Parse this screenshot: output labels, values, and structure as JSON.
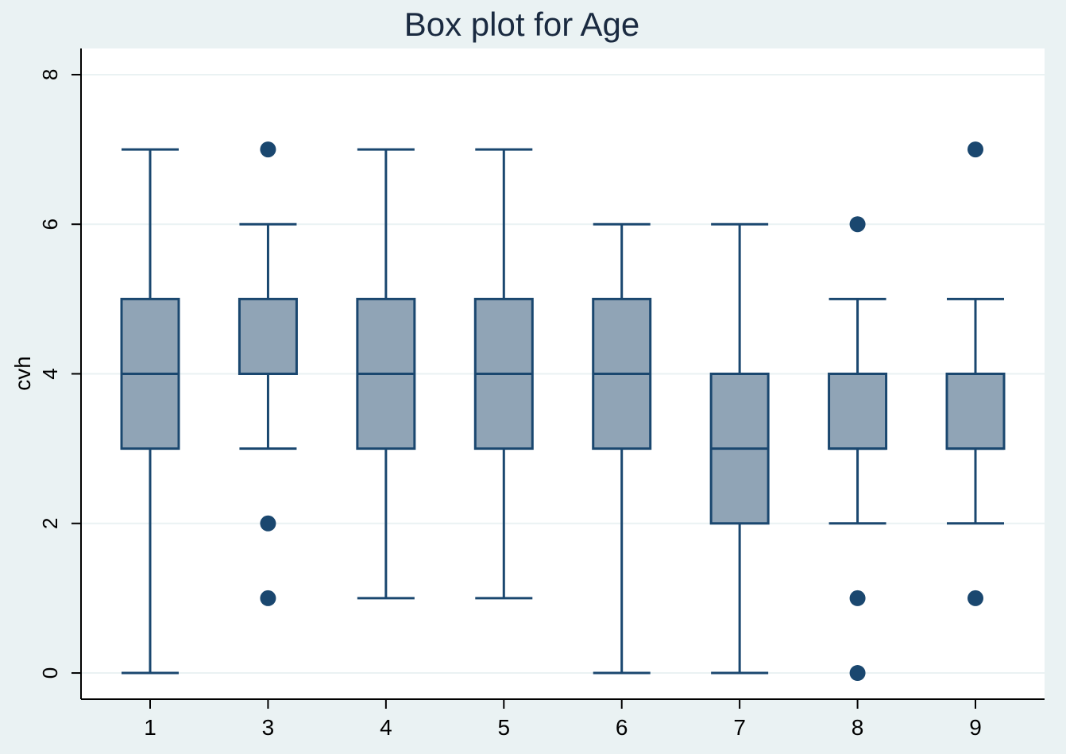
{
  "chart_data": {
    "type": "box",
    "title": "Box plot for Age",
    "xlabel": "",
    "ylabel": "cvh",
    "ylim": [
      -0.35,
      8.35
    ],
    "yticks": [
      0,
      2,
      4,
      6,
      8
    ],
    "grid": true,
    "legend": "none",
    "categories": [
      "1",
      "3",
      "4",
      "5",
      "6",
      "7",
      "8",
      "9"
    ],
    "boxes": [
      {
        "category": "1",
        "whisker_low": 0,
        "q1": 3,
        "median": 4,
        "q3": 5,
        "whisker_high": 7,
        "outliers": []
      },
      {
        "category": "3",
        "whisker_low": 3,
        "q1": 4,
        "median": 4,
        "q3": 5,
        "whisker_high": 6,
        "outliers": [
          1,
          2,
          7
        ]
      },
      {
        "category": "4",
        "whisker_low": 1,
        "q1": 3,
        "median": 4,
        "q3": 5,
        "whisker_high": 7,
        "outliers": []
      },
      {
        "category": "5",
        "whisker_low": 1,
        "q1": 3,
        "median": 4,
        "q3": 5,
        "whisker_high": 7,
        "outliers": []
      },
      {
        "category": "6",
        "whisker_low": 0,
        "q1": 3,
        "median": 4,
        "q3": 5,
        "whisker_high": 6,
        "outliers": []
      },
      {
        "category": "7",
        "whisker_low": 0,
        "q1": 2,
        "median": 3,
        "q3": 4,
        "whisker_high": 6,
        "outliers": []
      },
      {
        "category": "8",
        "whisker_low": 2,
        "q1": 3,
        "median": 3,
        "q3": 4,
        "whisker_high": 5,
        "outliers": [
          0,
          1,
          6
        ]
      },
      {
        "category": "9",
        "whisker_low": 2,
        "q1": 3,
        "median": 3,
        "q3": 4,
        "whisker_high": 5,
        "outliers": [
          1,
          7
        ]
      }
    ],
    "colors": {
      "background": "#eaf2f3",
      "plot_background": "#ffffff",
      "gridline": "#eaf2f3",
      "box_fill": "#90a4b6",
      "stroke": "#1a476f",
      "text": "#000000"
    }
  }
}
